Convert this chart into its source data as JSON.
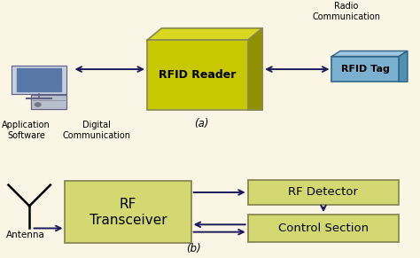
{
  "bg_color": "#faf5e4",
  "rfid_reader_front": "#c8c800",
  "rfid_reader_top": "#d8d820",
  "rfid_reader_right": "#909000",
  "rfid_tag_front": "#7ab0d0",
  "rfid_tag_top": "#a0c8e0",
  "rfid_tag_right": "#5090b0",
  "rf_transceiver_color": "#d4d870",
  "rf_detector_color": "#d4d870",
  "control_section_color": "#d4d870",
  "box_edge": "#888855",
  "box_edge_b": "#888855",
  "arrow_color": "#1a1a5a",
  "text_color": "#000000",
  "labels": {
    "rfid_reader": "RFID Reader",
    "rfid_tag": "RFID Tag",
    "radio_comm": "Radio\nCommunication",
    "digital_comm": "Digital\nCommunication",
    "app_software": "Application\nSoftware",
    "rf_transceiver": "RF\nTransceiver",
    "rf_detector": "RF Detector",
    "control_section": "Control Section",
    "antenna": "Antenna",
    "label_a": "(a)",
    "label_b": "(b)"
  }
}
